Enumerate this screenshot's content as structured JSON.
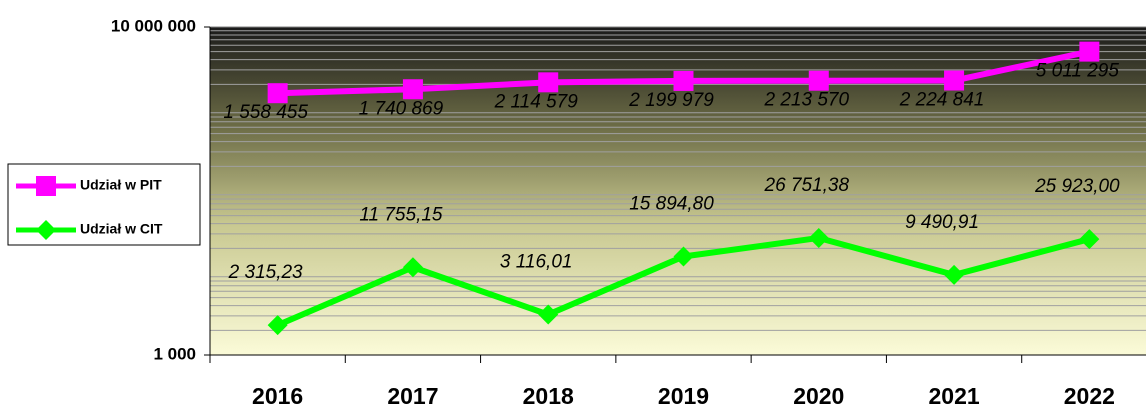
{
  "chart_data": {
    "type": "line",
    "categories": [
      "2016",
      "2017",
      "2018",
      "2019",
      "2020",
      "2021",
      "2022"
    ],
    "series": [
      {
        "name": "Udział w PIT",
        "color": "#ff00ff",
        "marker": "square",
        "values": [
          1558455,
          1740869,
          2114579,
          2199979,
          2213570,
          2224841,
          5011295
        ],
        "value_labels": [
          "1 558 455",
          "1 740 869",
          "2 114 579",
          "2 199 979",
          "2 213 570",
          "2 224 841",
          "5 011 295"
        ]
      },
      {
        "name": "Udział w CIT",
        "color": "#00ff00",
        "marker": "diamond",
        "values": [
          2315.23,
          11755.15,
          3116.01,
          15894.8,
          26751.38,
          9490.91,
          25923.0
        ],
        "value_labels": [
          "2 315,23",
          "11 755,15",
          "3 116,01",
          "15 894,80",
          "26 751,38",
          "9 490,91",
          "25 923,00"
        ]
      }
    ],
    "ylim": [
      1000,
      10000000
    ],
    "yticks": [
      {
        "value": 1000,
        "label": "1 000"
      },
      {
        "value": 10000000,
        "label": "10 000 000"
      }
    ],
    "log_scale": true,
    "grid": true,
    "legend": "left"
  }
}
